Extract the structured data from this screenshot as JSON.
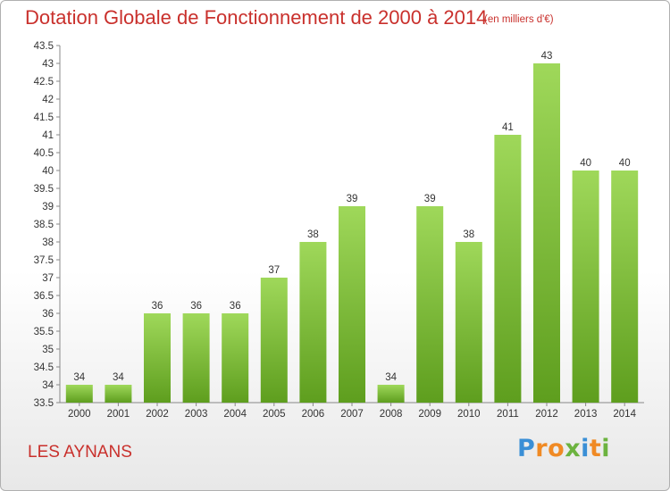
{
  "chart_data": {
    "type": "bar",
    "title": "Dotation Globale de Fonctionnement de 2000 à 2014",
    "subtitle": "(en milliers d'€)",
    "categories": [
      "2000",
      "2001",
      "2002",
      "2003",
      "2004",
      "2005",
      "2006",
      "2007",
      "2008",
      "2009",
      "2010",
      "2011",
      "2012",
      "2013",
      "2014"
    ],
    "values": [
      34,
      34,
      36,
      36,
      36,
      37,
      38,
      39,
      34,
      39,
      38,
      41,
      43,
      40,
      40
    ],
    "value_labels": [
      "34",
      "34",
      "36",
      "36",
      "36",
      "37",
      "38",
      "39",
      "34",
      "39",
      "38",
      "41",
      "43",
      "40",
      "40"
    ],
    "ylim": [
      33.5,
      43.5
    ],
    "yticks": [
      33.5,
      34,
      34.5,
      35,
      35.5,
      36,
      36.5,
      37,
      37.5,
      38,
      38.5,
      39,
      39.5,
      40,
      40.5,
      41,
      41.5,
      42,
      42.5,
      43,
      43.5
    ],
    "ytick_labels": [
      "33.5",
      "34",
      "34.5",
      "35",
      "35.5",
      "36",
      "36.5",
      "37",
      "37.5",
      "38",
      "38.5",
      "39",
      "39.5",
      "40",
      "40.5",
      "41",
      "41.5",
      "42",
      "42.5",
      "43",
      "43.5"
    ],
    "grid": false,
    "bar_color": "#7fc23a",
    "xlabel": "",
    "ylabel": ""
  },
  "commune": "LES AYNANS",
  "logo": {
    "letters": [
      "P",
      "r",
      "o",
      "x",
      "i",
      "t",
      "i"
    ],
    "colors": [
      "#3a8fd6",
      "#f08a24",
      "#f08a24",
      "#6cb33f",
      "#3a8fd6",
      "#f08a24",
      "#6cb33f"
    ]
  },
  "colors": {
    "title": "#c9302c",
    "bar_top": "#9fd85a",
    "bar_bottom": "#5e9e1e"
  }
}
